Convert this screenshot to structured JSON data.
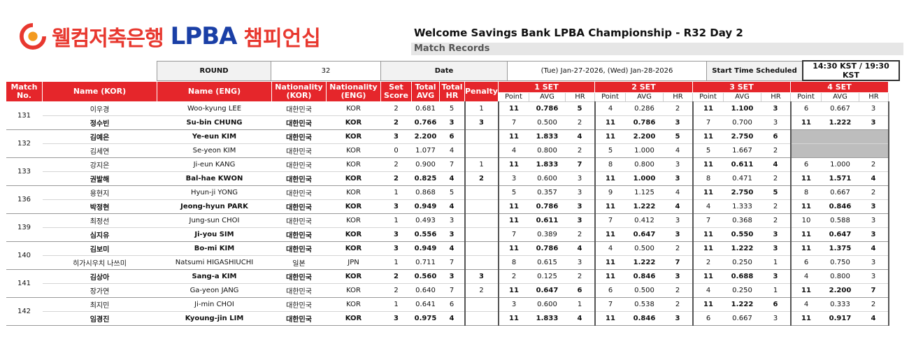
{
  "header": {
    "logo_korean": "웰컴저축은행",
    "logo_lpba": "LPBA",
    "logo_champ": "챔피언십",
    "title": "Welcome Savings Bank LPBA Championship - R32 Day 2",
    "subtitle": "Match Records"
  },
  "info": {
    "round_label": "ROUND",
    "round_value": "32",
    "date_label": "Date",
    "date_value": "(Tue) Jan-27-2026, (Wed) Jan-28-2026",
    "start_label": "Start Time Scheduled",
    "start_value": "14:30 KST / 19:30 KST"
  },
  "columns": {
    "match_no": "Match No.",
    "name_kor": "Name (KOR)",
    "name_eng": "Name (ENG)",
    "nat_kor": "Nationality (KOR)",
    "nat_eng": "Nationality (ENG)",
    "set_score": "Set Score",
    "total_avg": "Total AVG",
    "total_hr": "Total HR",
    "penalty": "Penalty",
    "sets": [
      "1 SET",
      "2 SET",
      "3 SET",
      "4 SET"
    ],
    "sub_point": "Point",
    "sub_avg": "AVG",
    "sub_hr": "HR"
  },
  "matches": [
    {
      "no": "131",
      "players": [
        {
          "winner": false,
          "kor": "이우경",
          "eng": "Woo-kyung LEE",
          "nat_kor": "대한민국",
          "nat_eng": "KOR",
          "score": "2",
          "avg": "0.681",
          "hr": "5",
          "penalty": "1",
          "sets": [
            [
              "11",
              "0.786",
              "5"
            ],
            [
              "4",
              "0.286",
              "2"
            ],
            [
              "11",
              "1.100",
              "3"
            ],
            [
              "6",
              "0.667",
              "3"
            ]
          ]
        },
        {
          "winner": true,
          "kor": "정수빈",
          "eng": "Su-bin CHUNG",
          "nat_kor": "대한민국",
          "nat_eng": "KOR",
          "score": "2",
          "avg": "0.766",
          "hr": "3",
          "penalty": "3",
          "sets": [
            [
              "7",
              "0.500",
              "2"
            ],
            [
              "11",
              "0.786",
              "3"
            ],
            [
              "7",
              "0.700",
              "3"
            ],
            [
              "11",
              "1.222",
              "3"
            ]
          ]
        }
      ]
    },
    {
      "no": "132",
      "players": [
        {
          "winner": true,
          "kor": "김예은",
          "eng": "Ye-eun KIM",
          "nat_kor": "대한민국",
          "nat_eng": "KOR",
          "score": "3",
          "avg": "2.200",
          "hr": "6",
          "penalty": "",
          "sets": [
            [
              "11",
              "1.833",
              "4"
            ],
            [
              "11",
              "2.200",
              "5"
            ],
            [
              "11",
              "2.750",
              "6"
            ],
            null
          ]
        },
        {
          "winner": false,
          "kor": "김세연",
          "eng": "Se-yeon KIM",
          "nat_kor": "대한민국",
          "nat_eng": "KOR",
          "score": "0",
          "avg": "1.077",
          "hr": "4",
          "penalty": "",
          "sets": [
            [
              "4",
              "0.800",
              "2"
            ],
            [
              "5",
              "1.000",
              "4"
            ],
            [
              "5",
              "1.667",
              "2"
            ],
            null
          ]
        }
      ]
    },
    {
      "no": "133",
      "players": [
        {
          "winner": false,
          "kor": "강지은",
          "eng": "Ji-eun KANG",
          "nat_kor": "대한민국",
          "nat_eng": "KOR",
          "score": "2",
          "avg": "0.900",
          "hr": "7",
          "penalty": "1",
          "sets": [
            [
              "11",
              "1.833",
              "7"
            ],
            [
              "8",
              "0.800",
              "3"
            ],
            [
              "11",
              "0.611",
              "4"
            ],
            [
              "6",
              "1.000",
              "2"
            ]
          ]
        },
        {
          "winner": true,
          "kor": "권발해",
          "eng": "Bal-hae KWON",
          "nat_kor": "대한민국",
          "nat_eng": "KOR",
          "score": "2",
          "avg": "0.825",
          "hr": "4",
          "penalty": "2",
          "sets": [
            [
              "3",
              "0.600",
              "3"
            ],
            [
              "11",
              "1.000",
              "3"
            ],
            [
              "8",
              "0.471",
              "2"
            ],
            [
              "11",
              "1.571",
              "4"
            ]
          ]
        }
      ]
    },
    {
      "no": "136",
      "players": [
        {
          "winner": false,
          "kor": "용현지",
          "eng": "Hyun-ji YONG",
          "nat_kor": "대한민국",
          "nat_eng": "KOR",
          "score": "1",
          "avg": "0.868",
          "hr": "5",
          "penalty": "",
          "sets": [
            [
              "5",
              "0.357",
              "3"
            ],
            [
              "9",
              "1.125",
              "4"
            ],
            [
              "11",
              "2.750",
              "5"
            ],
            [
              "8",
              "0.667",
              "2"
            ]
          ]
        },
        {
          "winner": true,
          "kor": "박정현",
          "eng": "Jeong-hyun PARK",
          "nat_kor": "대한민국",
          "nat_eng": "KOR",
          "score": "3",
          "avg": "0.949",
          "hr": "4",
          "penalty": "",
          "sets": [
            [
              "11",
              "0.786",
              "3"
            ],
            [
              "11",
              "1.222",
              "4"
            ],
            [
              "4",
              "1.333",
              "2"
            ],
            [
              "11",
              "0.846",
              "3"
            ]
          ]
        }
      ]
    },
    {
      "no": "139",
      "players": [
        {
          "winner": false,
          "kor": "최정선",
          "eng": "Jung-sun CHOI",
          "nat_kor": "대한민국",
          "nat_eng": "KOR",
          "score": "1",
          "avg": "0.493",
          "hr": "3",
          "penalty": "",
          "sets": [
            [
              "11",
              "0.611",
              "3"
            ],
            [
              "7",
              "0.412",
              "3"
            ],
            [
              "7",
              "0.368",
              "2"
            ],
            [
              "10",
              "0.588",
              "3"
            ]
          ]
        },
        {
          "winner": true,
          "kor": "심지유",
          "eng": "Ji-you SIM",
          "nat_kor": "대한민국",
          "nat_eng": "KOR",
          "score": "3",
          "avg": "0.556",
          "hr": "3",
          "penalty": "",
          "sets": [
            [
              "7",
              "0.389",
              "2"
            ],
            [
              "11",
              "0.647",
              "3"
            ],
            [
              "11",
              "0.550",
              "3"
            ],
            [
              "11",
              "0.647",
              "3"
            ]
          ]
        }
      ]
    },
    {
      "no": "140",
      "players": [
        {
          "winner": true,
          "kor": "김보미",
          "eng": "Bo-mi KIM",
          "nat_kor": "대한민국",
          "nat_eng": "KOR",
          "score": "3",
          "avg": "0.949",
          "hr": "4",
          "penalty": "",
          "sets": [
            [
              "11",
              "0.786",
              "4"
            ],
            [
              "4",
              "0.500",
              "2"
            ],
            [
              "11",
              "1.222",
              "3"
            ],
            [
              "11",
              "1.375",
              "4"
            ]
          ]
        },
        {
          "winner": false,
          "kor": "히가시우치 나쓰미",
          "eng": "Natsumi HIGASHIUCHI",
          "nat_kor": "일본",
          "nat_eng": "JPN",
          "score": "1",
          "avg": "0.711",
          "hr": "7",
          "penalty": "",
          "sets": [
            [
              "8",
              "0.615",
              "3"
            ],
            [
              "11",
              "1.222",
              "7"
            ],
            [
              "2",
              "0.250",
              "1"
            ],
            [
              "6",
              "0.750",
              "3"
            ]
          ]
        }
      ]
    },
    {
      "no": "141",
      "players": [
        {
          "winner": true,
          "kor": "김상아",
          "eng": "Sang-a KIM",
          "nat_kor": "대한민국",
          "nat_eng": "KOR",
          "score": "2",
          "avg": "0.560",
          "hr": "3",
          "penalty": "3",
          "sets": [
            [
              "2",
              "0.125",
              "2"
            ],
            [
              "11",
              "0.846",
              "3"
            ],
            [
              "11",
              "0.688",
              "3"
            ],
            [
              "4",
              "0.800",
              "3"
            ]
          ]
        },
        {
          "winner": false,
          "kor": "장가연",
          "eng": "Ga-yeon JANG",
          "nat_kor": "대한민국",
          "nat_eng": "KOR",
          "score": "2",
          "avg": "0.640",
          "hr": "7",
          "penalty": "2",
          "sets": [
            [
              "11",
              "0.647",
              "6"
            ],
            [
              "6",
              "0.500",
              "2"
            ],
            [
              "4",
              "0.250",
              "1"
            ],
            [
              "11",
              "2.200",
              "7"
            ]
          ]
        }
      ]
    },
    {
      "no": "142",
      "players": [
        {
          "winner": false,
          "kor": "최지민",
          "eng": "Ji-min CHOI",
          "nat_kor": "대한민국",
          "nat_eng": "KOR",
          "score": "1",
          "avg": "0.641",
          "hr": "6",
          "penalty": "",
          "sets": [
            [
              "3",
              "0.600",
              "1"
            ],
            [
              "7",
              "0.538",
              "2"
            ],
            [
              "11",
              "1.222",
              "6"
            ],
            [
              "4",
              "0.333",
              "2"
            ]
          ]
        },
        {
          "winner": true,
          "kor": "임경진",
          "eng": "Kyoung-jin LIM",
          "nat_kor": "대한민국",
          "nat_eng": "KOR",
          "score": "3",
          "avg": "0.975",
          "hr": "4",
          "penalty": "",
          "sets": [
            [
              "11",
              "1.833",
              "4"
            ],
            [
              "11",
              "0.846",
              "3"
            ],
            [
              "6",
              "0.667",
              "3"
            ],
            [
              "11",
              "0.917",
              "4"
            ]
          ]
        }
      ]
    }
  ]
}
